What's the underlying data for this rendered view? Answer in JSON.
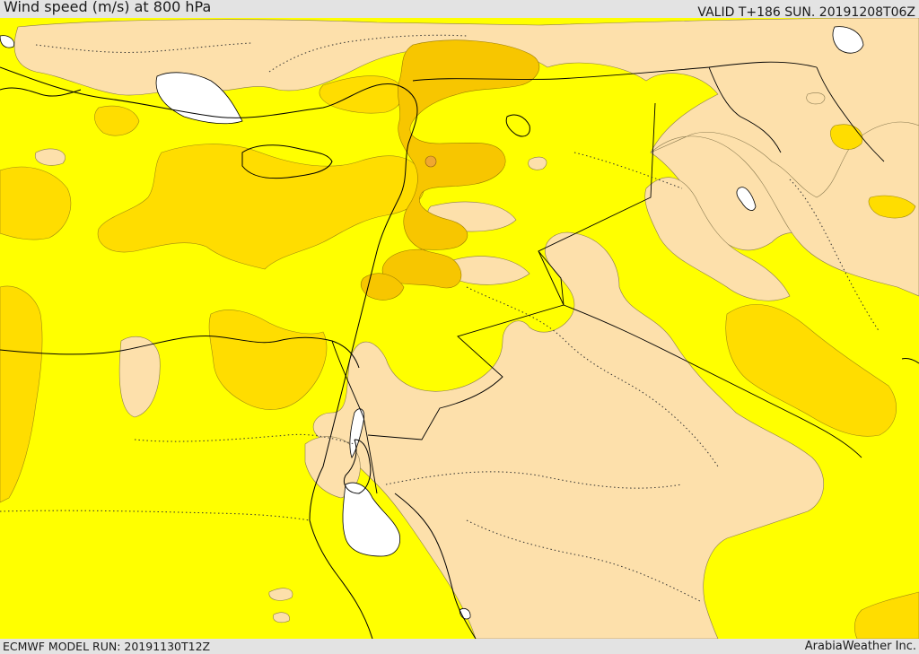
{
  "header": {
    "title": "Wind speed (m/s) at 800 hPa",
    "valid_time": "VALID T+186 SUN. 20191208T06Z"
  },
  "footer": {
    "model_run": "ECMWF MODEL RUN: 20191130T12Z",
    "credit": "ArabiaWeather Inc."
  },
  "map": {
    "colors": {
      "low_wind": "#fde0ab",
      "moderate_wind": "#ffff00",
      "higher_wind": "#ffdd00",
      "highest_wind": "#f7c600",
      "peak_spot": "#f0a830",
      "water_body": "#ffffff",
      "coastline": "#000000"
    }
  }
}
